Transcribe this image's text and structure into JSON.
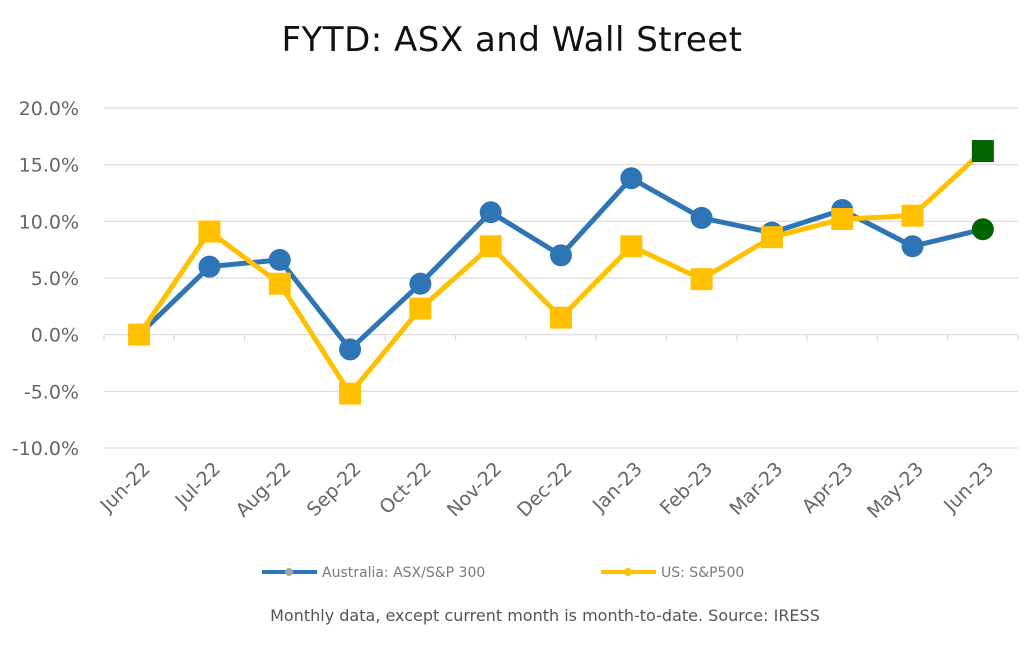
{
  "title": "FYTD: ASX and Wall Street",
  "footer": "Monthly data, except current month is month-to-date.  Source: IRESS",
  "colors": {
    "asx": "#2E75B6",
    "sp500": "#FFC000",
    "current_marker": "#006400",
    "grid": "#d9d9d9",
    "legend_dot": "#a6a6a6"
  },
  "chart_data": {
    "type": "line",
    "categories": [
      "Jun-22",
      "Jul-22",
      "Aug-22",
      "Sep-22",
      "Oct-22",
      "Nov-22",
      "Dec-22",
      "Jan-23",
      "Feb-23",
      "Mar-23",
      "Apr-23",
      "May-23",
      "Jun-23"
    ],
    "ylim": [
      -10,
      20
    ],
    "yticks": [
      20,
      15,
      10,
      5,
      0,
      -5,
      -10
    ],
    "ytick_labels": [
      "20.0%",
      "15.0%",
      "10.0%",
      "5.0%",
      "0.0%",
      "-5.0%",
      "-10.0%"
    ],
    "series": [
      {
        "name": "Australia: ASX/S&P 300",
        "marker": "circle",
        "values": [
          0.0,
          6.0,
          6.6,
          -1.3,
          4.5,
          10.8,
          7.0,
          13.8,
          10.3,
          9.0,
          11.0,
          7.8,
          9.3
        ]
      },
      {
        "name": "US: S&P500",
        "marker": "square",
        "values": [
          0.0,
          9.1,
          4.5,
          -5.2,
          2.3,
          7.8,
          1.5,
          7.8,
          4.9,
          8.6,
          10.2,
          10.5,
          16.2
        ]
      }
    ],
    "grid": true,
    "legend_position": "bottom",
    "highlight_last_point": true
  }
}
